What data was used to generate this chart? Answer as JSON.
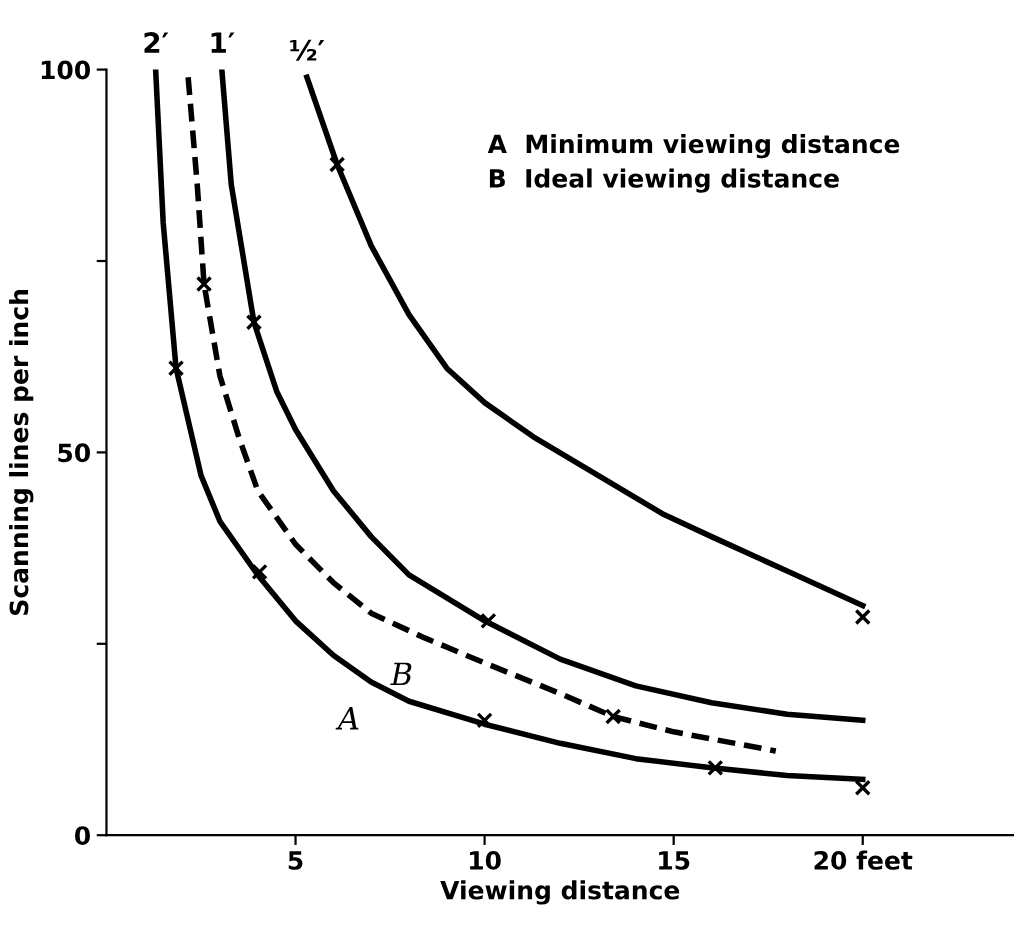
{
  "chart_data": {
    "type": "line",
    "xlabel": "Viewing distance",
    "ylabel": "Scanning lines per inch",
    "xlim": [
      0,
      24
    ],
    "ylim": [
      0,
      100
    ],
    "xticks": [
      5,
      10,
      15,
      {
        "value": 20,
        "label": "20 feet"
      }
    ],
    "yticks": [
      0,
      {
        "value": 25,
        "label": null
      },
      50,
      {
        "value": 75,
        "label": null
      },
      100
    ],
    "grid": false,
    "series": [
      {
        "color": "#000000",
        "line_style": "solid",
        "marker": "none",
        "x": [
          1.3,
          1.5,
          1.84,
          2.5,
          3,
          4,
          5,
          6,
          7,
          8,
          10,
          12,
          14,
          16,
          18,
          20
        ],
        "values": [
          100,
          80,
          61,
          47,
          41,
          34,
          28,
          23.5,
          20,
          17.5,
          14.5,
          12,
          10,
          8.8,
          7.8,
          7.3
        ]
      },
      {
        "color": "#000000",
        "line_style": "dashed",
        "marker": "none",
        "x": [
          2.16,
          2.4,
          2.58,
          3,
          3.5,
          4,
          5,
          6,
          7,
          8.4,
          10,
          12,
          13.4,
          15,
          17.7
        ],
        "values": [
          99,
          85,
          72,
          60,
          52,
          45,
          38,
          33,
          29,
          25.8,
          22.5,
          18.5,
          15.5,
          13.5,
          11
        ]
      },
      {
        "color": "#000000",
        "line_style": "solid",
        "marker": "none",
        "x": [
          3.05,
          3.3,
          3.9,
          4.5,
          5,
          6,
          7,
          8,
          10,
          12,
          14,
          16,
          18,
          20
        ],
        "values": [
          100,
          85,
          67,
          58,
          53,
          45,
          39,
          34,
          28,
          23,
          19.5,
          17.3,
          15.8,
          15
        ]
      },
      {
        "color": "#000000",
        "line_style": "solid",
        "marker": "none",
        "x": [
          5.3,
          6.1,
          7,
          8,
          9,
          10,
          11.3,
          13,
          14.7,
          16,
          18,
          20
        ],
        "values": [
          99,
          87.6,
          77,
          68,
          61,
          56.5,
          52,
          47,
          42,
          39,
          34.5,
          30
        ]
      },
      {
        "type": "scatter",
        "color": "#000000",
        "marker": "cross",
        "x": [
          1.84,
          4.05,
          10,
          16.1,
          20,
          2.58,
          13.4,
          3.9,
          10.1,
          6.1,
          20
        ],
        "values": [
          61,
          34.4,
          15,
          8.8,
          6.2,
          72,
          15.5,
          67,
          28,
          87.6,
          28.5
        ]
      }
    ],
    "annotations": [
      {
        "text": "2′",
        "x": 1.3,
        "y": 100
      },
      {
        "text": "1′",
        "x": 3.05,
        "y": 100
      },
      {
        "text": "½′",
        "x": 5.3,
        "y": 99
      },
      {
        "text": "A",
        "x": 7,
        "y": 20
      },
      {
        "text": "B",
        "x": 8.4,
        "y": 25.8
      },
      "A  Minimum viewing distance",
      "B  Ideal viewing distance"
    ]
  }
}
